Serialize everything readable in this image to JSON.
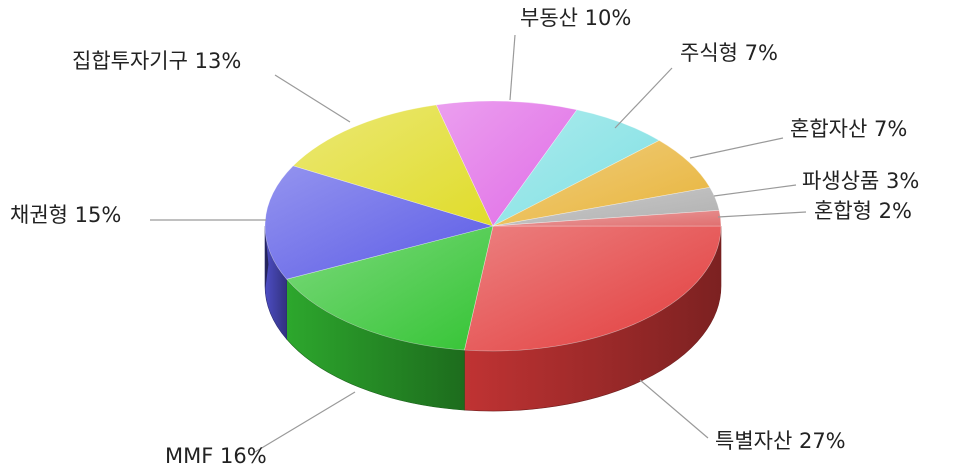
{
  "chart_data": {
    "type": "pie",
    "title": "",
    "slices": [
      {
        "name": "특별자산",
        "value": 27,
        "label": "특별자산 27%",
        "color": "#e23c3c"
      },
      {
        "name": "MMF",
        "value": 16,
        "label": "MMF 16%",
        "color": "#35c435"
      },
      {
        "name": "채권형",
        "value": 15,
        "label": "채권형 15%",
        "color": "#5b5be6"
      },
      {
        "name": "집합투자기구",
        "value": 13,
        "label": "집합투자기구 13%",
        "color": "#e0dc2a"
      },
      {
        "name": "부동산",
        "value": 10,
        "label": "부동산 10%",
        "color": "#e06ce6"
      },
      {
        "name": "주식형",
        "value": 7,
        "label": "주식형 7%",
        "color": "#7fe0e3"
      },
      {
        "name": "혼합자산",
        "value": 7,
        "label": "혼합자산 7%",
        "color": "#e8b43a"
      },
      {
        "name": "파생상품",
        "value": 3,
        "label": "파생상품 3%",
        "color": "#b0b0b0"
      },
      {
        "name": "혼합형",
        "value": 2,
        "label": "혼합형 2%",
        "color": "#e07070"
      }
    ],
    "style": "3d-pie"
  }
}
